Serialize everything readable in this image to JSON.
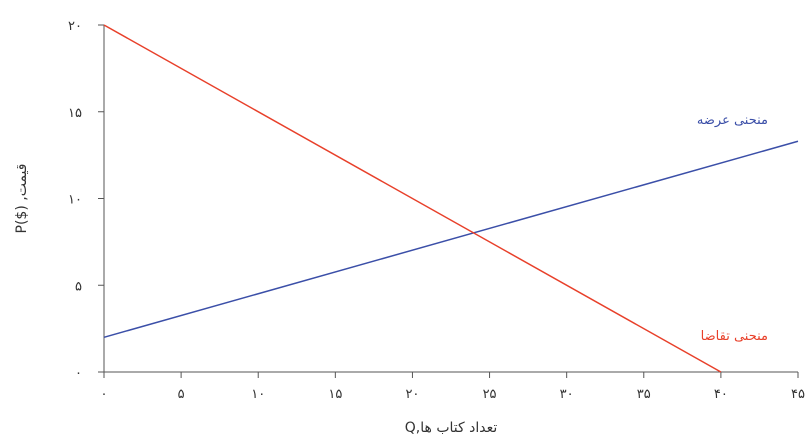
{
  "chart_data": {
    "type": "line",
    "title": "",
    "xlabel": "Q,تعداد کتاب ها",
    "ylabel": "P($) ,قیمت",
    "xlim": [
      0,
      45
    ],
    "ylim": [
      0,
      20
    ],
    "xticks": [
      0,
      5,
      10,
      15,
      20,
      25,
      30,
      35,
      40,
      45
    ],
    "xtick_labels": [
      "۰",
      "۵",
      "۱۰",
      "۱۵",
      "۲۰",
      "۲۵",
      "۳۰",
      "۳۵",
      "۴۰",
      "۴۵"
    ],
    "yticks": [
      0,
      5,
      10,
      15,
      20
    ],
    "ytick_labels": [
      "۰",
      "۵",
      "۱۰",
      "۱۵",
      "۲۰"
    ],
    "grid": false,
    "series": [
      {
        "name": "منحنی عرضه",
        "color": "#3b4fa8",
        "x": [
          0,
          45
        ],
        "y": [
          2,
          13.3
        ]
      },
      {
        "name": "منحنی تقاضا",
        "color": "#e8402a",
        "x": [
          0,
          40
        ],
        "y": [
          20,
          0
        ]
      }
    ]
  }
}
